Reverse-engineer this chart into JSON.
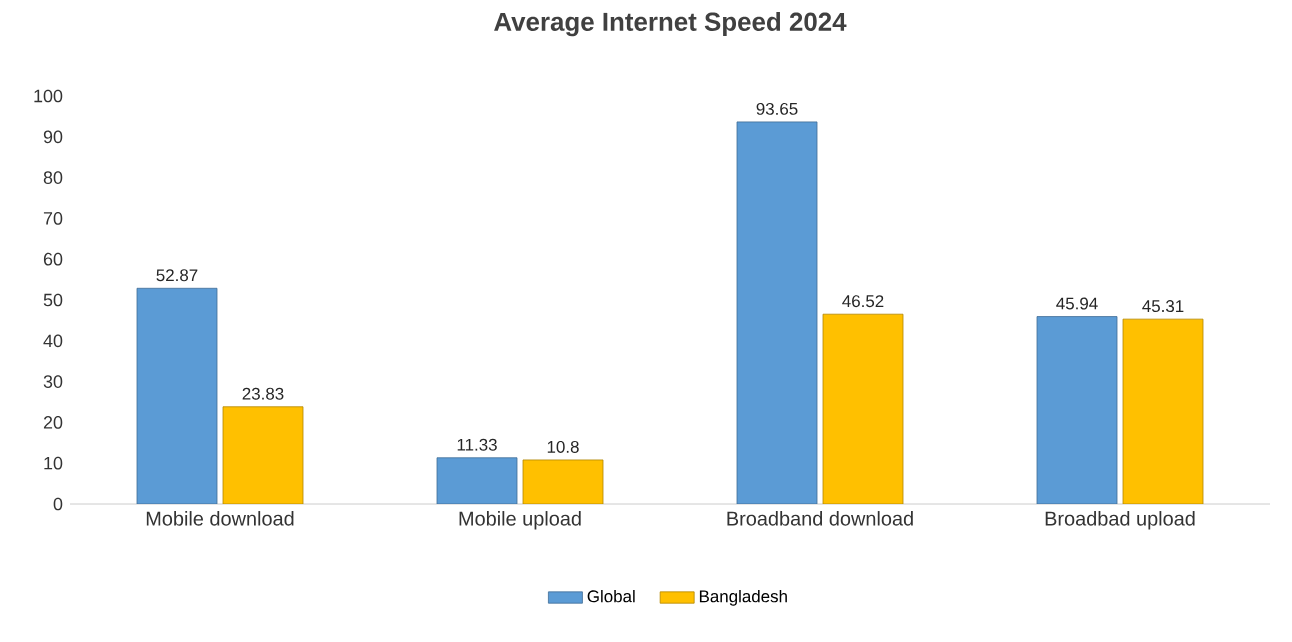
{
  "chart_data": {
    "type": "bar",
    "title": "Average Internet Speed 2024",
    "categories": [
      "Mobile download",
      "Mobile upload",
      "Broadband download",
      "Broadbad upload"
    ],
    "series": [
      {
        "name": "Global",
        "color": "#5b9bd5",
        "values": [
          52.87,
          11.33,
          93.65,
          45.94
        ]
      },
      {
        "name": "Bangladesh",
        "color": "#ffc000",
        "values": [
          23.83,
          10.8,
          46.52,
          45.31
        ]
      }
    ],
    "ylim": [
      0,
      100
    ],
    "yticks": [
      0,
      10,
      20,
      30,
      40,
      50,
      60,
      70,
      80,
      90,
      100
    ],
    "grid": false,
    "legend": "bottom",
    "data_labels": true
  }
}
